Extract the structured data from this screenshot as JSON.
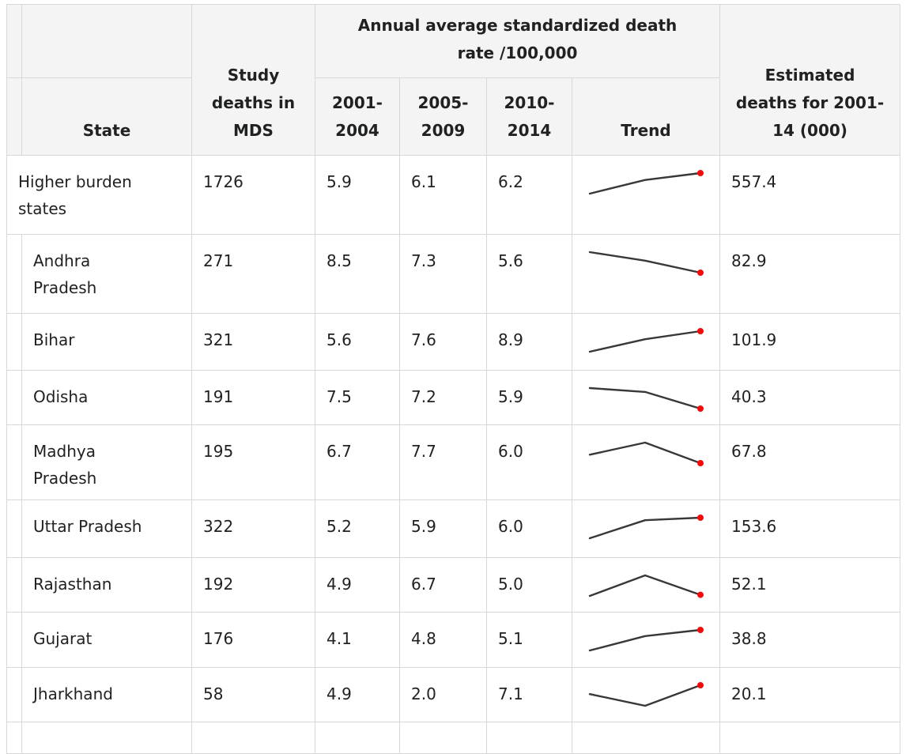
{
  "table": {
    "header": {
      "state": "State",
      "study_deaths": "Study\ndeaths in\nMDS",
      "group_title": "Annual average standardized death\nrate /100,000",
      "periods": [
        "2001-\n2004",
        "2005-\n2009",
        "2010-\n2014"
      ],
      "trend": "Trend",
      "estimated": "Estimated\ndeaths for 2001-\n14 (000)"
    },
    "rows": [
      {
        "state": "Higher burden\nstates",
        "study_deaths": "1726",
        "rates": [
          "5.9",
          "6.1",
          "6.2"
        ],
        "estimated": "557.4"
      },
      {
        "state": "Andhra\nPradesh",
        "study_deaths": "271",
        "rates": [
          "8.5",
          "7.3",
          "5.6"
        ],
        "estimated": "82.9"
      },
      {
        "state": "Bihar",
        "study_deaths": "321",
        "rates": [
          "5.6",
          "7.6",
          "8.9"
        ],
        "estimated": "101.9"
      },
      {
        "state": "Odisha",
        "study_deaths": "191",
        "rates": [
          "7.5",
          "7.2",
          "5.9"
        ],
        "estimated": "40.3"
      },
      {
        "state": "Madhya\nPradesh",
        "study_deaths": "195",
        "rates": [
          "6.7",
          "7.7",
          "6.0"
        ],
        "estimated": "67.8"
      },
      {
        "state": "Uttar Pradesh",
        "study_deaths": "322",
        "rates": [
          "5.2",
          "5.9",
          "6.0"
        ],
        "estimated": "153.6"
      },
      {
        "state": "Rajasthan",
        "study_deaths": "192",
        "rates": [
          "4.9",
          "6.7",
          "5.0"
        ],
        "estimated": "52.1"
      },
      {
        "state": "Gujarat",
        "study_deaths": "176",
        "rates": [
          "4.1",
          "4.8",
          "5.1"
        ],
        "estimated": "38.8"
      },
      {
        "state": "Jharkhand",
        "study_deaths": "58",
        "rates": [
          "4.9",
          "2.0",
          "7.1"
        ],
        "estimated": "20.1"
      }
    ]
  },
  "colors": {
    "header_bg": "#f4f4f4",
    "border": "#d8d8d8",
    "text": "#202122",
    "trend_line": "#383838",
    "trend_dot": "#f50a0a"
  },
  "chart_data": {
    "type": "table",
    "title": "Annual average standardized death rate /100,000",
    "columns": [
      "State",
      "Study deaths in MDS",
      "2001-2004",
      "2005-2009",
      "2010-2014",
      "Trend",
      "Estimated deaths for 2001-14 (000)"
    ],
    "rows": [
      {
        "state": "Higher burden states",
        "study_deaths_in_mds": 1726,
        "rate_2001_2004": 5.9,
        "rate_2005_2009": 6.1,
        "rate_2010_2014": 6.2,
        "estimated_deaths_000": 557.4
      },
      {
        "state": "Andhra Pradesh",
        "study_deaths_in_mds": 271,
        "rate_2001_2004": 8.5,
        "rate_2005_2009": 7.3,
        "rate_2010_2014": 5.6,
        "estimated_deaths_000": 82.9
      },
      {
        "state": "Bihar",
        "study_deaths_in_mds": 321,
        "rate_2001_2004": 5.6,
        "rate_2005_2009": 7.6,
        "rate_2010_2014": 8.9,
        "estimated_deaths_000": 101.9
      },
      {
        "state": "Odisha",
        "study_deaths_in_mds": 191,
        "rate_2001_2004": 7.5,
        "rate_2005_2009": 7.2,
        "rate_2010_2014": 5.9,
        "estimated_deaths_000": 40.3
      },
      {
        "state": "Madhya Pradesh",
        "study_deaths_in_mds": 195,
        "rate_2001_2004": 6.7,
        "rate_2005_2009": 7.7,
        "rate_2010_2014": 6.0,
        "estimated_deaths_000": 67.8
      },
      {
        "state": "Uttar Pradesh",
        "study_deaths_in_mds": 322,
        "rate_2001_2004": 5.2,
        "rate_2005_2009": 5.9,
        "rate_2010_2014": 6.0,
        "estimated_deaths_000": 153.6
      },
      {
        "state": "Rajasthan",
        "study_deaths_in_mds": 192,
        "rate_2001_2004": 4.9,
        "rate_2005_2009": 6.7,
        "rate_2010_2014": 5.0,
        "estimated_deaths_000": 52.1
      },
      {
        "state": "Gujarat",
        "study_deaths_in_mds": 176,
        "rate_2001_2004": 4.1,
        "rate_2005_2009": 4.8,
        "rate_2010_2014": 5.1,
        "estimated_deaths_000": 38.8
      },
      {
        "state": "Jharkhand",
        "study_deaths_in_mds": 58,
        "rate_2001_2004": 4.9,
        "rate_2005_2009": 2.0,
        "rate_2010_2014": 7.1,
        "estimated_deaths_000": 20.1
      }
    ],
    "trend_sparklines": {
      "type": "line",
      "x": [
        "2001-2004",
        "2005-2009",
        "2010-2014"
      ],
      "note": "Each Trend cell is a 3-point sparkline of that row's period rates; the 2010-2014 endpoint is marked with a red dot"
    }
  }
}
